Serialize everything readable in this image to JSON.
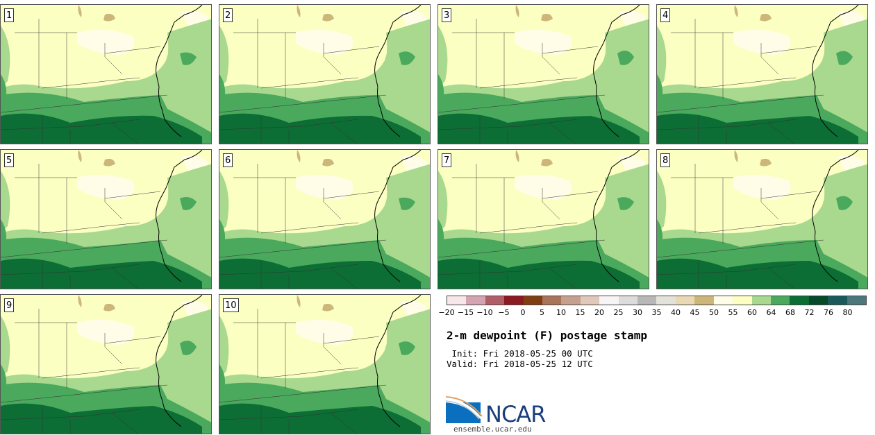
{
  "panels": [
    {
      "label": "1"
    },
    {
      "label": "2"
    },
    {
      "label": "3"
    },
    {
      "label": "4"
    },
    {
      "label": "5"
    },
    {
      "label": "6"
    },
    {
      "label": "7"
    },
    {
      "label": "8"
    },
    {
      "label": "9"
    },
    {
      "label": "10"
    }
  ],
  "colorbar": {
    "ticks": [
      "−20",
      "−15",
      "−10",
      "−5",
      "0",
      "5",
      "10",
      "15",
      "20",
      "25",
      "30",
      "35",
      "40",
      "45",
      "50",
      "55",
      "60",
      "64",
      "68",
      "72",
      "76",
      "80"
    ],
    "colors": [
      "#f7e6ea",
      "#d4a4b0",
      "#b05f66",
      "#8b1a22",
      "#7f3f12",
      "#a8745a",
      "#c6a08e",
      "#e0c8bb",
      "#f6f4f4",
      "#dcdcdc",
      "#b7b7b7",
      "#e2e2da",
      "#e8d9b4",
      "#cdb67a",
      "#fffde8",
      "#fcffc2",
      "#a9d98e",
      "#4aa95c",
      "#0c6e34",
      "#064a2a",
      "#1b5a5a",
      "#4b787a"
    ]
  },
  "title": "2-m dewpoint (F) postage stamp",
  "init_line": " Init: Fri 2018-05-25 00 UTC",
  "valid_line": "Valid: Fri 2018-05-25 12 UTC",
  "logo": {
    "name": "NCAR",
    "url": "ensemble.ucar.edu"
  }
}
